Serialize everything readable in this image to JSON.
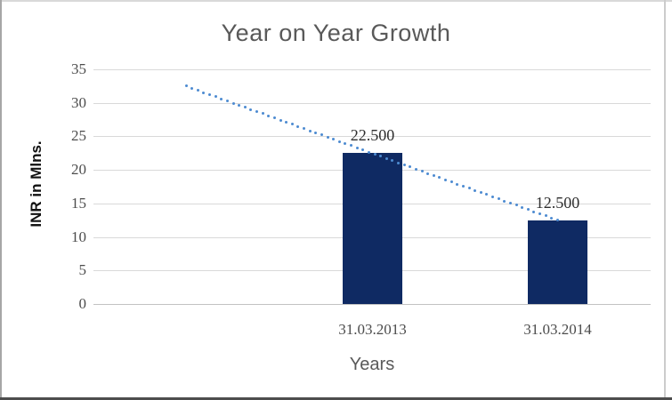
{
  "chart_data": {
    "type": "bar",
    "title": "Year on Year Growth",
    "ylabel": "INR in Mlns.",
    "xlabel": "Years",
    "categories": [
      "31.03.2013",
      "31.03.2014"
    ],
    "values": [
      22.5,
      12.5
    ],
    "data_labels": [
      "22.500",
      "12.500"
    ],
    "yticks": [
      0,
      5,
      10,
      15,
      20,
      25,
      30,
      35
    ],
    "ylim": [
      0,
      35
    ],
    "grid": true,
    "legend": false,
    "trendline": {
      "style": "dotted",
      "start_value": 32.5,
      "end_value": 12.5
    },
    "colors": {
      "bar": "#0f2a63",
      "trendline": "#4d8bd1",
      "gridline": "#d9d9d9",
      "axis_line": "#c2c2c2",
      "title_text": "#595959",
      "tick_text": "#4c4c4c",
      "data_label_text": "#2e2e2e"
    }
  }
}
